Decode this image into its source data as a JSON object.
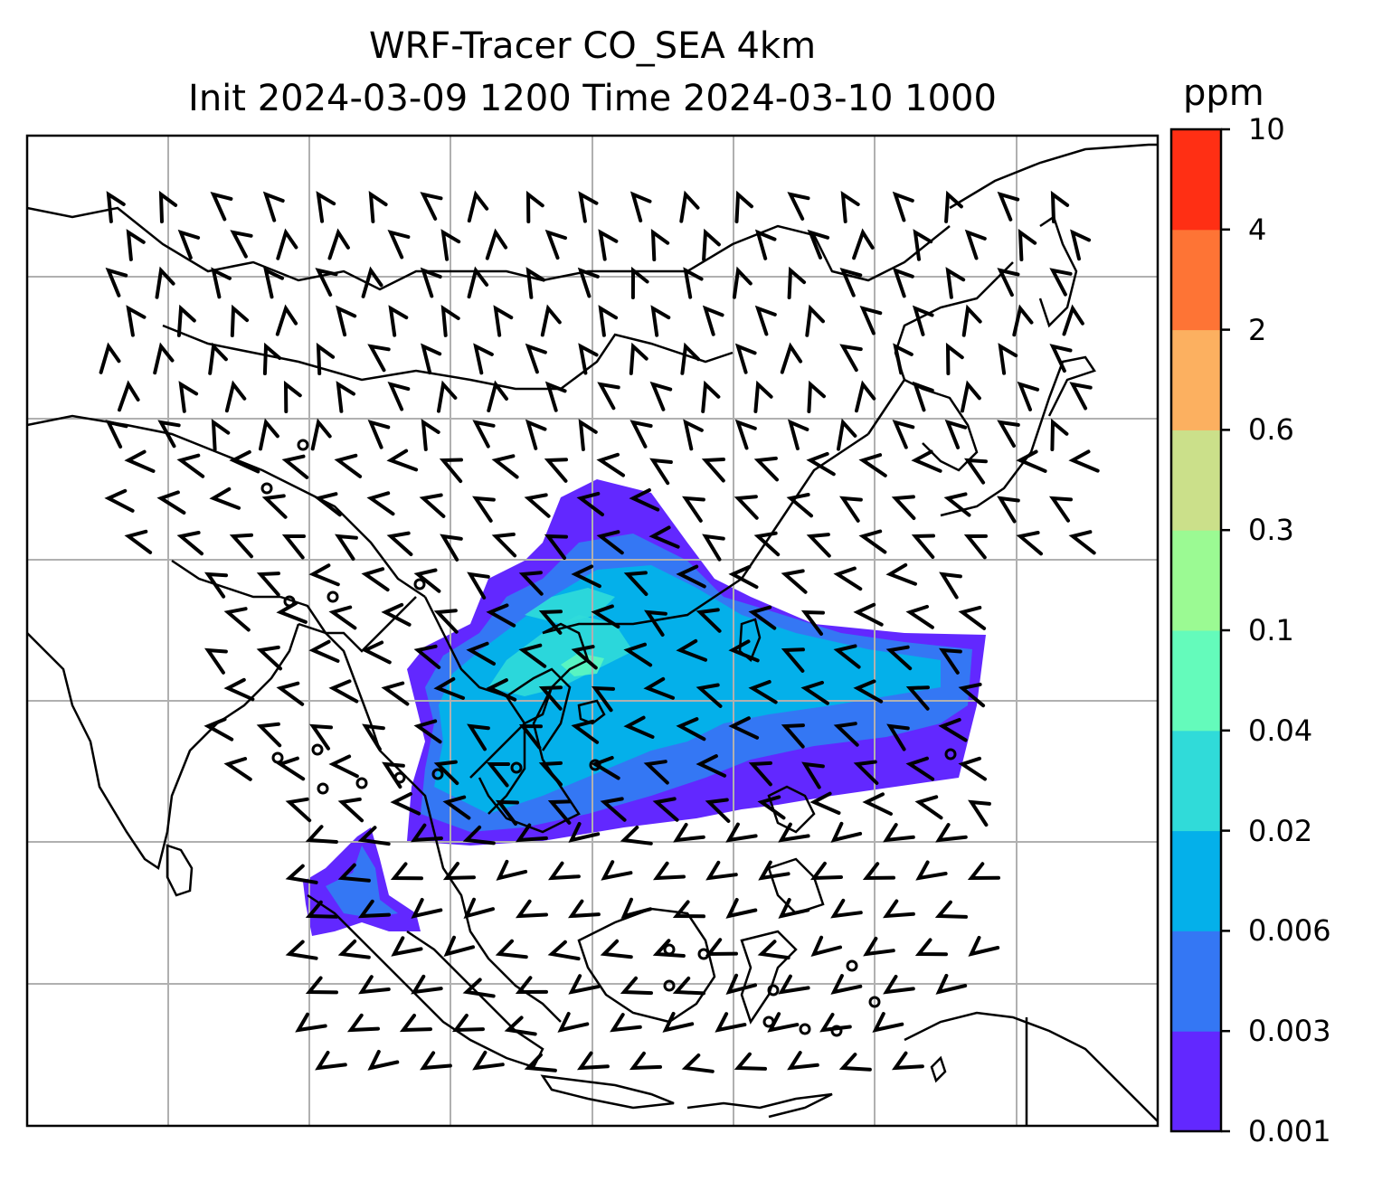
{
  "title": {
    "line1": "WRF-Tracer CO_SEA 4km",
    "line2": "Init 2024-03-09 1200 Time 2024-03-10 1000"
  },
  "colorbar": {
    "unit": "ppm",
    "ticks": [
      "0.001",
      "0.003",
      "0.006",
      "0.02",
      "0.04",
      "0.1",
      "0.3",
      "0.6",
      "2",
      "4",
      "10"
    ],
    "colors": [
      "#6228ff",
      "#3477f4",
      "#04b0ea",
      "#30dbd9",
      "#64fbbb",
      "#9bfa93",
      "#cbe08a",
      "#fcb060",
      "#fe7435",
      "#ff2f14"
    ]
  },
  "map": {
    "features": [
      "coastlines",
      "country-borders",
      "gridlines",
      "wind-barbs",
      "tracer-shading"
    ],
    "gridline_color": "#b0b0b0"
  }
}
